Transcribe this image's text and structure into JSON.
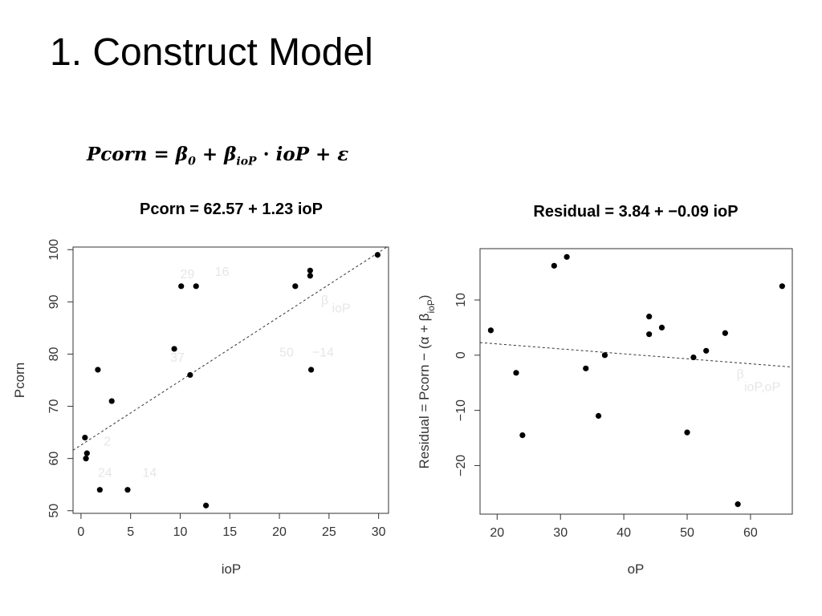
{
  "slide": {
    "title": "1. Construct Model",
    "formula": {
      "lhs": "Pcorn",
      "eq": " =  ",
      "beta0": "β",
      "beta0_sub": "0",
      "plus1": " + ",
      "beta1": "β",
      "beta1_sub": "ioP",
      "dot": " · ",
      "var": "ioP",
      "plus2": " + ",
      "eps": "ε"
    }
  },
  "chart_data": [
    {
      "type": "scatter",
      "title": "Pcorn = 62.57 + 1.23 ioP",
      "xlabel": "ioP",
      "ylabel": "Pcorn",
      "xlim": [
        -0.8,
        31
      ],
      "ylim": [
        49.5,
        100.5
      ],
      "xticks": [
        0,
        5,
        10,
        15,
        20,
        25,
        30
      ],
      "yticks": [
        50,
        60,
        70,
        80,
        90,
        100
      ],
      "x": [
        0.4,
        0.5,
        0.6,
        1.7,
        1.9,
        3.1,
        4.7,
        9.4,
        10.1,
        11.0,
        11.6,
        12.6,
        21.6,
        23.1,
        23.1,
        23.2,
        29.9
      ],
      "y": [
        64,
        60,
        61,
        77,
        54,
        71,
        54,
        81,
        93,
        76,
        93,
        51,
        93,
        95,
        96,
        77,
        99
      ],
      "fit": {
        "intercept": 62.57,
        "slope": 1.23,
        "style": "dashed"
      },
      "grid": false,
      "faint_annotations": [
        {
          "text": "29",
          "x": 10.0,
          "y": 94.5
        },
        {
          "text": "16",
          "x": 13.5,
          "y": 95.0
        },
        {
          "text": "β",
          "x": 24.2,
          "y": 89.5
        },
        {
          "text": "ioP",
          "x": 25.3,
          "y": 88.0
        },
        {
          "text": "37",
          "x": 9.0,
          "y": 78.5
        },
        {
          "text": "50",
          "x": 20.0,
          "y": 79.5
        },
        {
          "text": "−14",
          "x": 23.3,
          "y": 79.5
        },
        {
          "text": "2",
          "x": 2.3,
          "y": 62.5
        },
        {
          "text": "24",
          "x": 1.7,
          "y": 56.5
        },
        {
          "text": "14",
          "x": 6.2,
          "y": 56.5
        }
      ]
    },
    {
      "type": "scatter",
      "title": "Residual = 3.84 + −0.09 ioP",
      "xlabel": "oP",
      "ylabel_parts": [
        "Residual = Pcorn − (α + β",
        "ioP",
        ")"
      ],
      "xlim": [
        17.3,
        66.6
      ],
      "ylim": [
        -28.8,
        19.3
      ],
      "xticks": [
        20,
        30,
        40,
        50,
        60
      ],
      "yticks": [
        -20,
        -10,
        0,
        10
      ],
      "x": [
        19,
        23,
        24,
        29,
        31,
        34,
        36,
        37,
        44,
        44,
        46,
        50,
        51,
        53,
        56,
        58,
        65
      ],
      "y": [
        4.5,
        -3.2,
        -14.5,
        16.2,
        17.8,
        -2.4,
        -11,
        0,
        7,
        3.8,
        5,
        -14,
        -0.4,
        0.8,
        4,
        -27,
        12.5
      ],
      "fit": {
        "intercept": 3.84,
        "slope": -0.09,
        "style": "dashed"
      },
      "grid": false,
      "faint_annotations": [
        {
          "text": "β",
          "x": 57.8,
          "y": -4.2
        },
        {
          "text": "ioP,oP",
          "x": 59.0,
          "y": -6.5
        }
      ]
    }
  ]
}
